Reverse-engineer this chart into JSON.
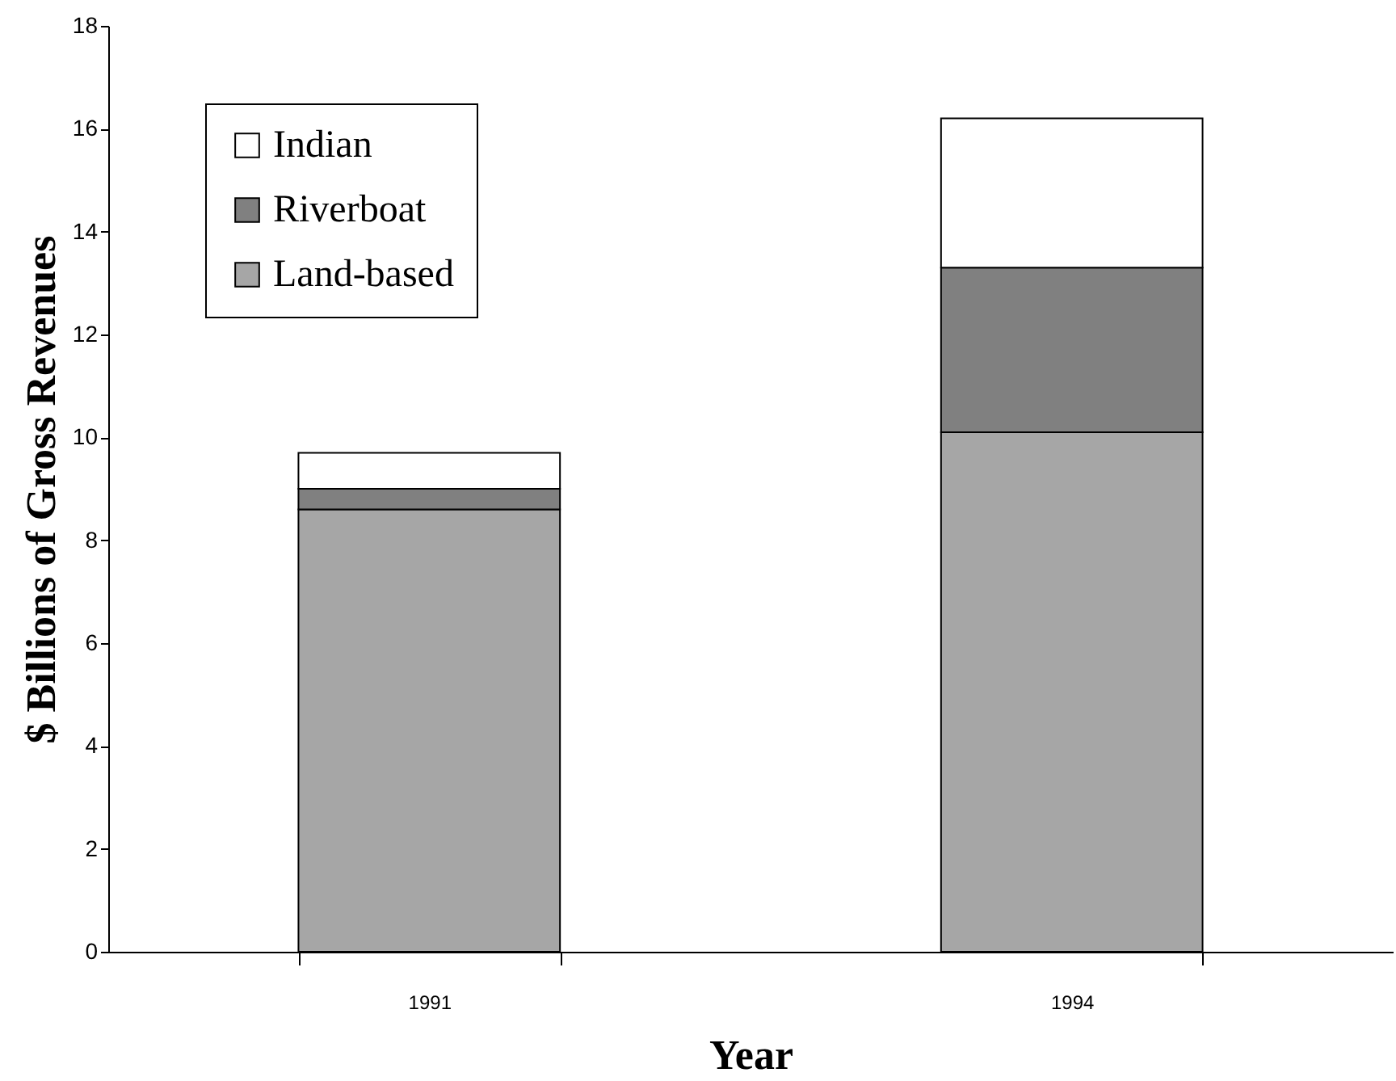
{
  "chart_data": {
    "type": "bar",
    "stacked": true,
    "xlabel": "Year",
    "ylabel": "$ Billions of Gross Revenues",
    "categories": [
      "1991",
      "1994"
    ],
    "series": [
      {
        "name": "Land-based",
        "color": "#a6a6a6",
        "values": [
          8.6,
          10.1
        ]
      },
      {
        "name": "Riverboat",
        "color": "#808080",
        "values": [
          0.4,
          3.2
        ]
      },
      {
        "name": "Indian",
        "color": "#ffffff",
        "values": [
          0.7,
          2.9
        ]
      }
    ],
    "ylim": [
      0,
      18
    ],
    "yticks": [
      0,
      2,
      4,
      6,
      8,
      10,
      12,
      14,
      16,
      18
    ],
    "grid": false,
    "legend": "top left"
  }
}
